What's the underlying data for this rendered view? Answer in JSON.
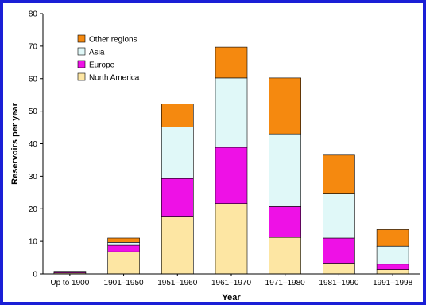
{
  "chart_data": {
    "type": "bar",
    "stacked": true,
    "title": "",
    "xlabel": "Year",
    "ylabel": "Reservoirs per year",
    "ylim": [
      0,
      80
    ],
    "yticks": [
      0,
      10,
      20,
      30,
      40,
      50,
      60,
      70,
      80
    ],
    "grid": false,
    "legend_position": "top-left",
    "categories": [
      "Up to 1900",
      "1901–1950",
      "1951–1960",
      "1961–1970",
      "1971–1980",
      "1981–1990",
      "1991–1998"
    ],
    "series": [
      {
        "name": "North America",
        "color": "#fde6a3",
        "values": [
          0.3,
          6.8,
          17.7,
          21.6,
          11.2,
          3.3,
          1.3
        ]
      },
      {
        "name": "Europe",
        "color": "#ee11e6",
        "values": [
          0.3,
          2.0,
          11.6,
          17.3,
          9.5,
          7.7,
          1.7
        ]
      },
      {
        "name": "Asia",
        "color": "#e0f8f8",
        "values": [
          0.1,
          0.9,
          15.8,
          21.3,
          22.3,
          13.8,
          5.5
        ]
      },
      {
        "name": "Other regions",
        "color": "#f5890f",
        "values": [
          0.1,
          1.3,
          7.1,
          9.5,
          17.2,
          11.7,
          5.1
        ]
      }
    ]
  }
}
